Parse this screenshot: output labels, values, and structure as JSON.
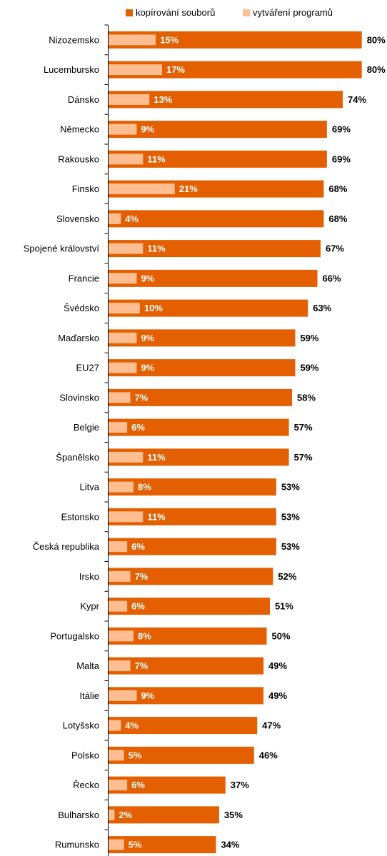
{
  "chart_data": {
    "type": "bar",
    "orientation": "horizontal",
    "categories": [
      "Nizozemsko",
      "Lucembursko",
      "Dánsko",
      "Německo",
      "Rakousko",
      "Finsko",
      "Slovensko",
      "Spojené království",
      "Francie",
      "Švédsko",
      "Maďarsko",
      "EU27",
      "Slovinsko",
      "Belgie",
      "Španělsko",
      "Litva",
      "Estonsko",
      "Česká republika",
      "Irsko",
      "Kypr",
      "Portugalsko",
      "Malta",
      "Itálie",
      "Lotyšsko",
      "Polsko",
      "Řecko",
      "Bulharsko",
      "Rumunsko"
    ],
    "series": [
      {
        "name": "kopírování souborů",
        "color": "#E35F00",
        "values": [
          80,
          80,
          74,
          69,
          69,
          68,
          68,
          67,
          66,
          63,
          59,
          59,
          58,
          57,
          57,
          53,
          53,
          53,
          52,
          51,
          50,
          49,
          49,
          47,
          46,
          37,
          35,
          34
        ],
        "labels": [
          "80%",
          "80%",
          "74%",
          "69%",
          "69%",
          "68%",
          "68%",
          "67%",
          "66%",
          "63%",
          "59%",
          "59%",
          "58%",
          "57%",
          "57%",
          "53%",
          "53%",
          "53%",
          "52%",
          "51%",
          "50%",
          "49%",
          "49%",
          "47%",
          "46%",
          "37%",
          "35%",
          "34%"
        ]
      },
      {
        "name": "vytváření programů",
        "color": "#FFBE91",
        "values": [
          15,
          17,
          13,
          9,
          11,
          21,
          4,
          11,
          9,
          10,
          9,
          9,
          7,
          6,
          11,
          8,
          11,
          6,
          7,
          6,
          8,
          7,
          9,
          4,
          5,
          6,
          2,
          5
        ],
        "labels": [
          "15%",
          "17%",
          "13%",
          "9%",
          "11%",
          "21%",
          "4%",
          "11%",
          "9%",
          "10%",
          "9%",
          "9%",
          "7%",
          "6%",
          "11%",
          "8%",
          "11%",
          "6%",
          "7%",
          "6%",
          "8%",
          "7%",
          "9%",
          "4%",
          "5%",
          "6%",
          "2%",
          "5%"
        ]
      }
    ],
    "xlim": [
      0,
      80
    ],
    "legend_position": "top",
    "grid": false
  }
}
